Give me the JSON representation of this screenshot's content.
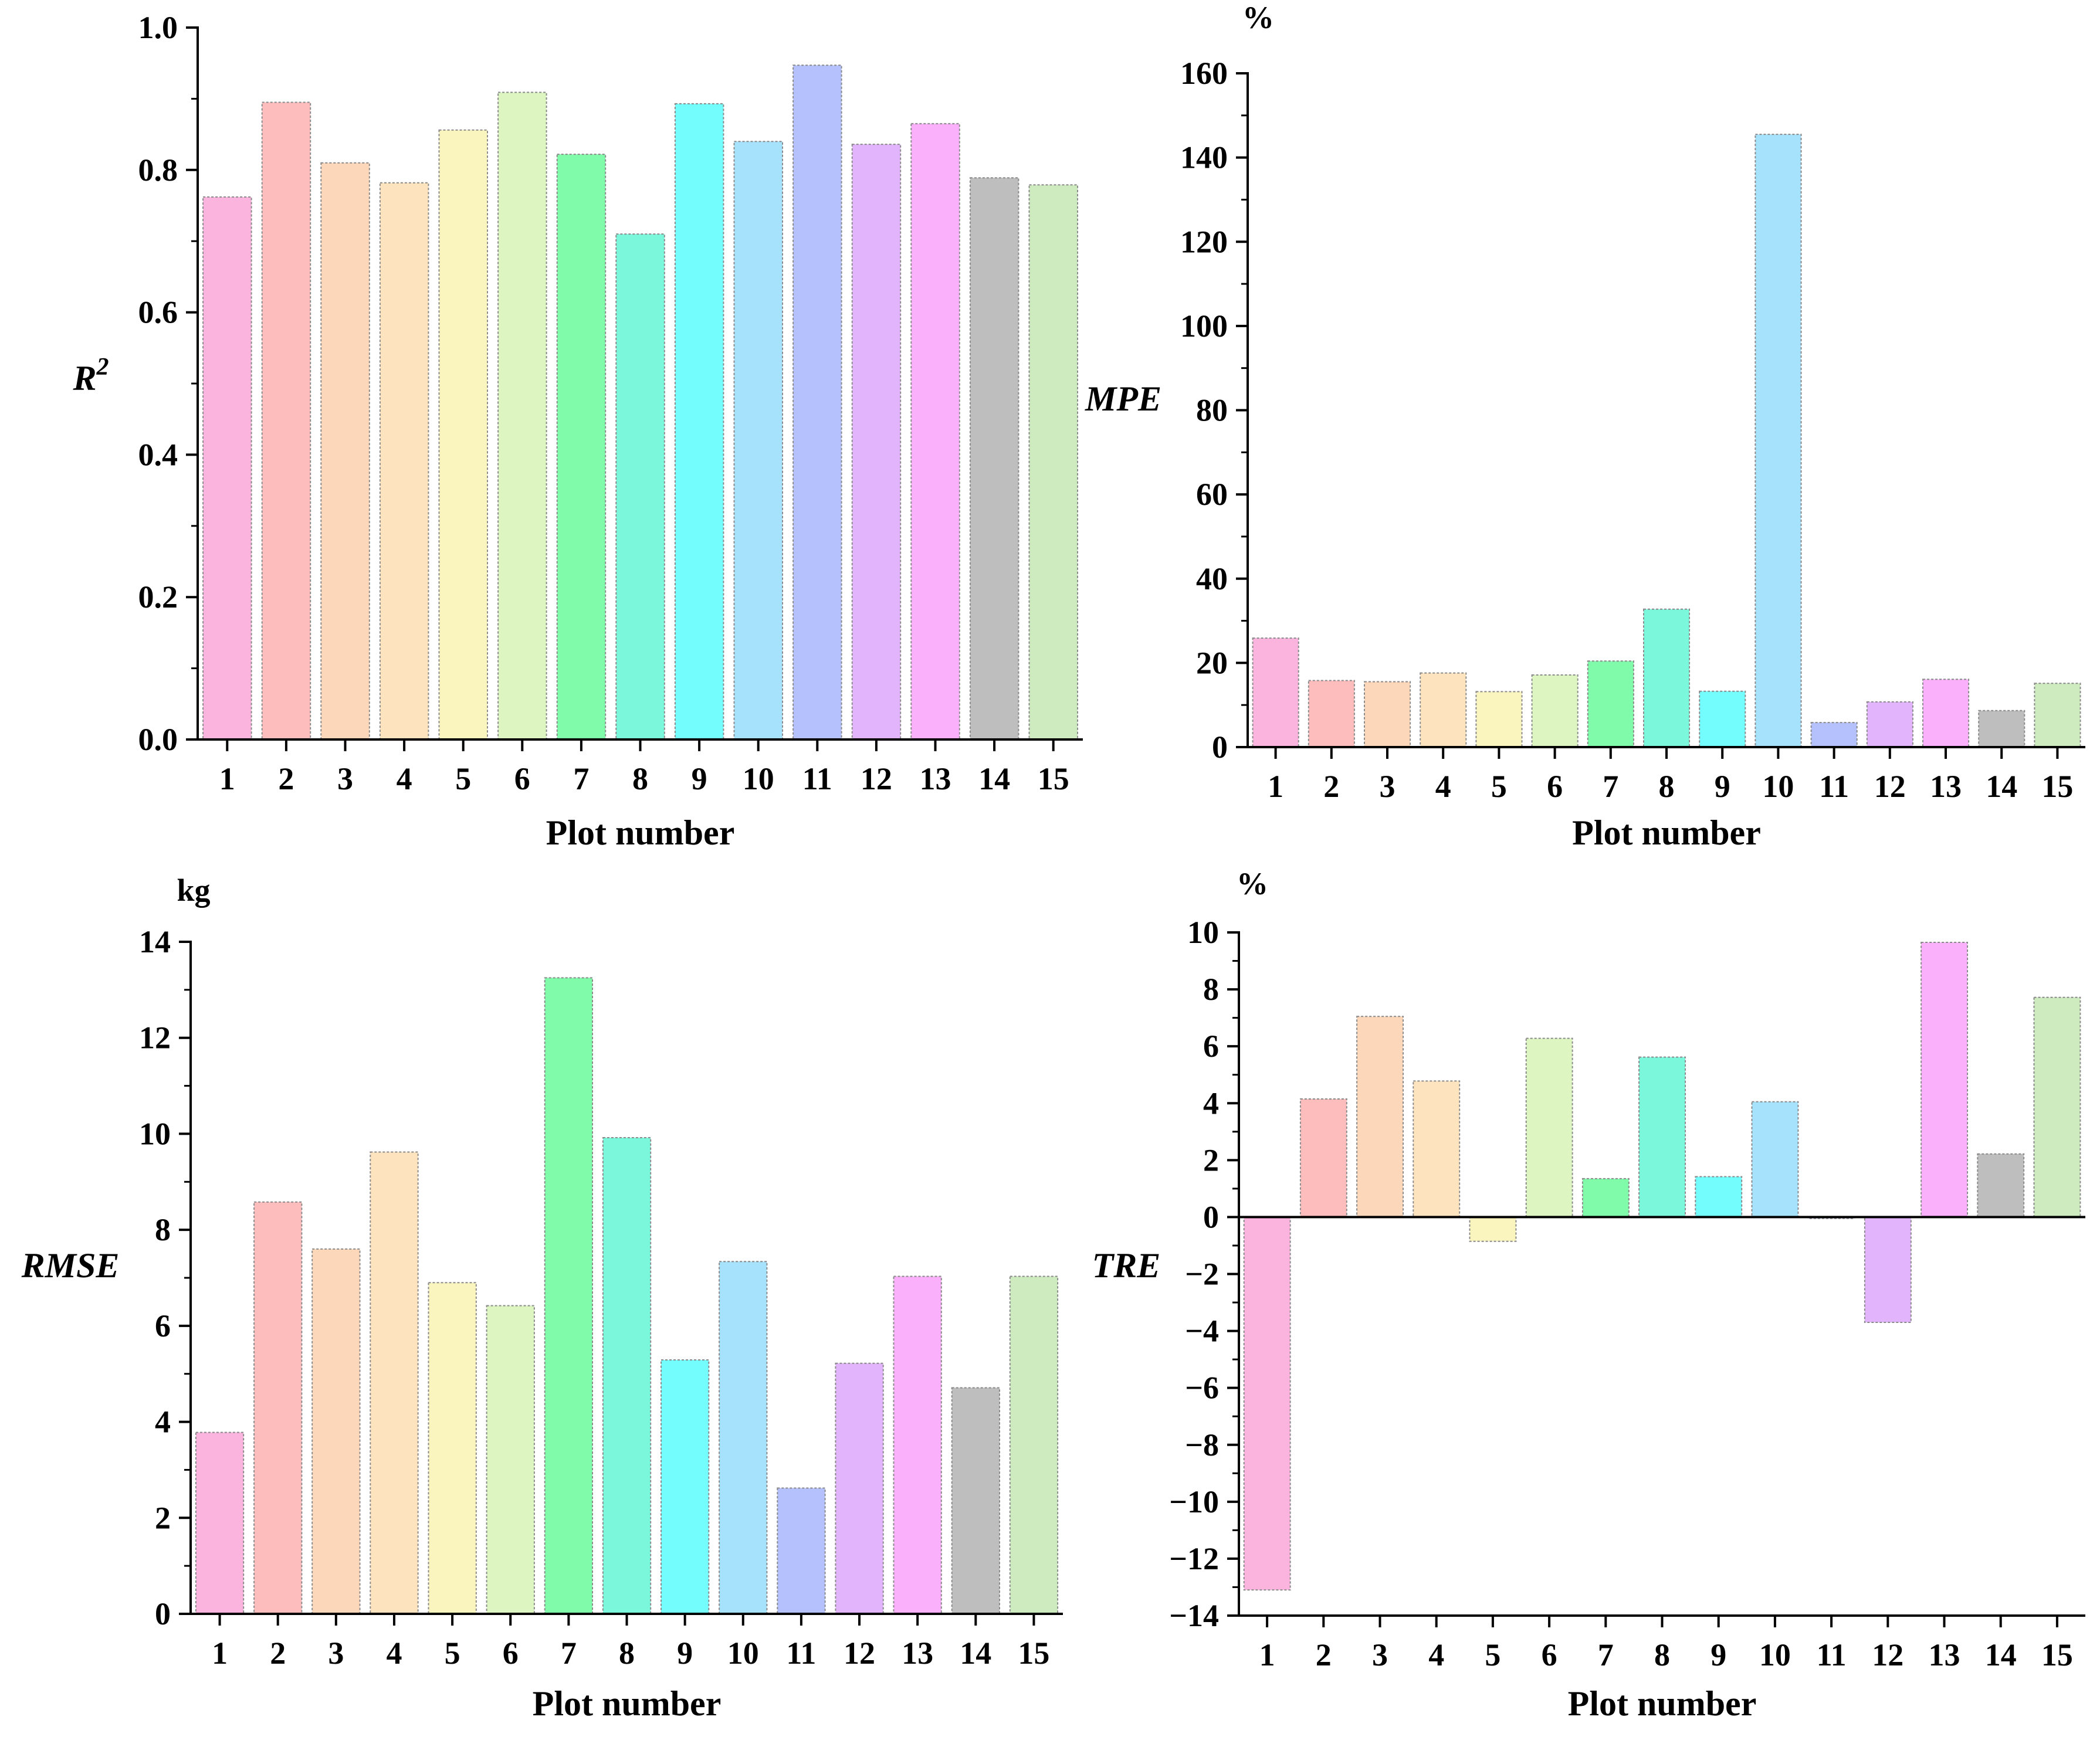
{
  "chart_data": [
    {
      "type": "bar",
      "categories": [
        "1",
        "2",
        "3",
        "4",
        "5",
        "6",
        "7",
        "8",
        "9",
        "10",
        "11",
        "12",
        "13",
        "14",
        "15"
      ],
      "values": [
        0.762,
        0.895,
        0.81,
        0.782,
        0.856,
        0.909,
        0.822,
        0.71,
        0.893,
        0.84,
        0.947,
        0.836,
        0.865,
        0.789,
        0.779
      ],
      "colors": [
        "#FAB4DE",
        "#FDBDBD",
        "#FDD7BA",
        "#FEE4BE",
        "#FAF4BE",
        "#DDF6C1",
        "#80FBA9",
        "#7BF7DB",
        "#74FDFD",
        "#A6E2FC",
        "#B4C1FC",
        "#E2B4FC",
        "#FAB0FB",
        "#BEBEBE",
        "#CDEBBE"
      ],
      "title": "",
      "xlabel": "Plot number",
      "ylabel": "R",
      "ylabel_sup": "2",
      "unit": "",
      "ylim": [
        0,
        1.0
      ],
      "yticks": [
        "0.0",
        "0.2",
        "0.4",
        "0.6",
        "0.8",
        "1.0"
      ]
    },
    {
      "type": "bar",
      "categories": [
        "1",
        "2",
        "3",
        "4",
        "5",
        "6",
        "7",
        "8",
        "9",
        "10",
        "11",
        "12",
        "13",
        "14",
        "15"
      ],
      "values": [
        27.5,
        16.8,
        16.5,
        18.7,
        14.0,
        18.2,
        21.7,
        34.8,
        14.1,
        154.6,
        6.2,
        11.4,
        17.1,
        9.2,
        16.1
      ],
      "colors": [
        "#FAB4DE",
        "#FDBDBD",
        "#FDD7BA",
        "#FEE4BE",
        "#FAF4BE",
        "#DDF6C1",
        "#80FBA9",
        "#7BF7DB",
        "#74FDFD",
        "#A6E2FC",
        "#B4C1FC",
        "#E2B4FC",
        "#FAB0FB",
        "#BEBEBE",
        "#CDEBBE"
      ],
      "title": "",
      "xlabel": "Plot number",
      "ylabel": "MPE",
      "ylabel_sup": "",
      "unit": "%",
      "ylim": [
        0,
        170
      ],
      "yticks": [
        "0",
        "20",
        "40",
        "60",
        "80",
        "100",
        "120",
        "140",
        "160"
      ]
    },
    {
      "type": "bar",
      "categories": [
        "1",
        "2",
        "3",
        "4",
        "5",
        "6",
        "7",
        "8",
        "9",
        "10",
        "11",
        "12",
        "13",
        "14",
        "15"
      ],
      "values": [
        3.78,
        8.58,
        7.6,
        9.62,
        6.9,
        6.42,
        13.25,
        9.92,
        5.29,
        7.34,
        2.62,
        5.22,
        7.03,
        4.71,
        7.03
      ],
      "colors": [
        "#FAB4DE",
        "#FDBDBD",
        "#FDD7BA",
        "#FEE4BE",
        "#FAF4BE",
        "#DDF6C1",
        "#80FBA9",
        "#7BF7DB",
        "#74FDFD",
        "#A6E2FC",
        "#B4C1FC",
        "#E2B4FC",
        "#FAB0FB",
        "#BEBEBE",
        "#CDEBBE"
      ],
      "title": "",
      "xlabel": "Plot number",
      "ylabel": "RMSE",
      "ylabel_sup": "",
      "unit": "kg",
      "ylim": [
        0,
        14
      ],
      "yticks": [
        "0",
        "2",
        "4",
        "6",
        "8",
        "10",
        "12",
        "14"
      ]
    },
    {
      "type": "bar",
      "categories": [
        "1",
        "2",
        "3",
        "4",
        "5",
        "6",
        "7",
        "8",
        "9",
        "10",
        "11",
        "12",
        "13",
        "14",
        "15"
      ],
      "values": [
        -13.1,
        4.15,
        7.05,
        4.78,
        -0.85,
        6.28,
        1.35,
        5.62,
        1.42,
        4.05,
        -0.05,
        -3.7,
        9.65,
        2.22,
        7.72
      ],
      "colors": [
        "#FAB4DE",
        "#FDBDBD",
        "#FDD7BA",
        "#FEE4BE",
        "#FAF4BE",
        "#DDF6C1",
        "#80FBA9",
        "#7BF7DB",
        "#74FDFD",
        "#A6E2FC",
        "#B4C1FC",
        "#E2B4FC",
        "#FAB0FB",
        "#BEBEBE",
        "#CDEBBE"
      ],
      "title": "",
      "xlabel": "Plot number",
      "ylabel": "TRE",
      "ylabel_sup": "",
      "unit": "%",
      "ylim": [
        -14,
        10
      ],
      "yticks": [
        "-14",
        "-12",
        "-10",
        "-8",
        "-6",
        "-4",
        "-2",
        "0",
        "2",
        "4",
        "6",
        "8",
        "10"
      ]
    }
  ]
}
